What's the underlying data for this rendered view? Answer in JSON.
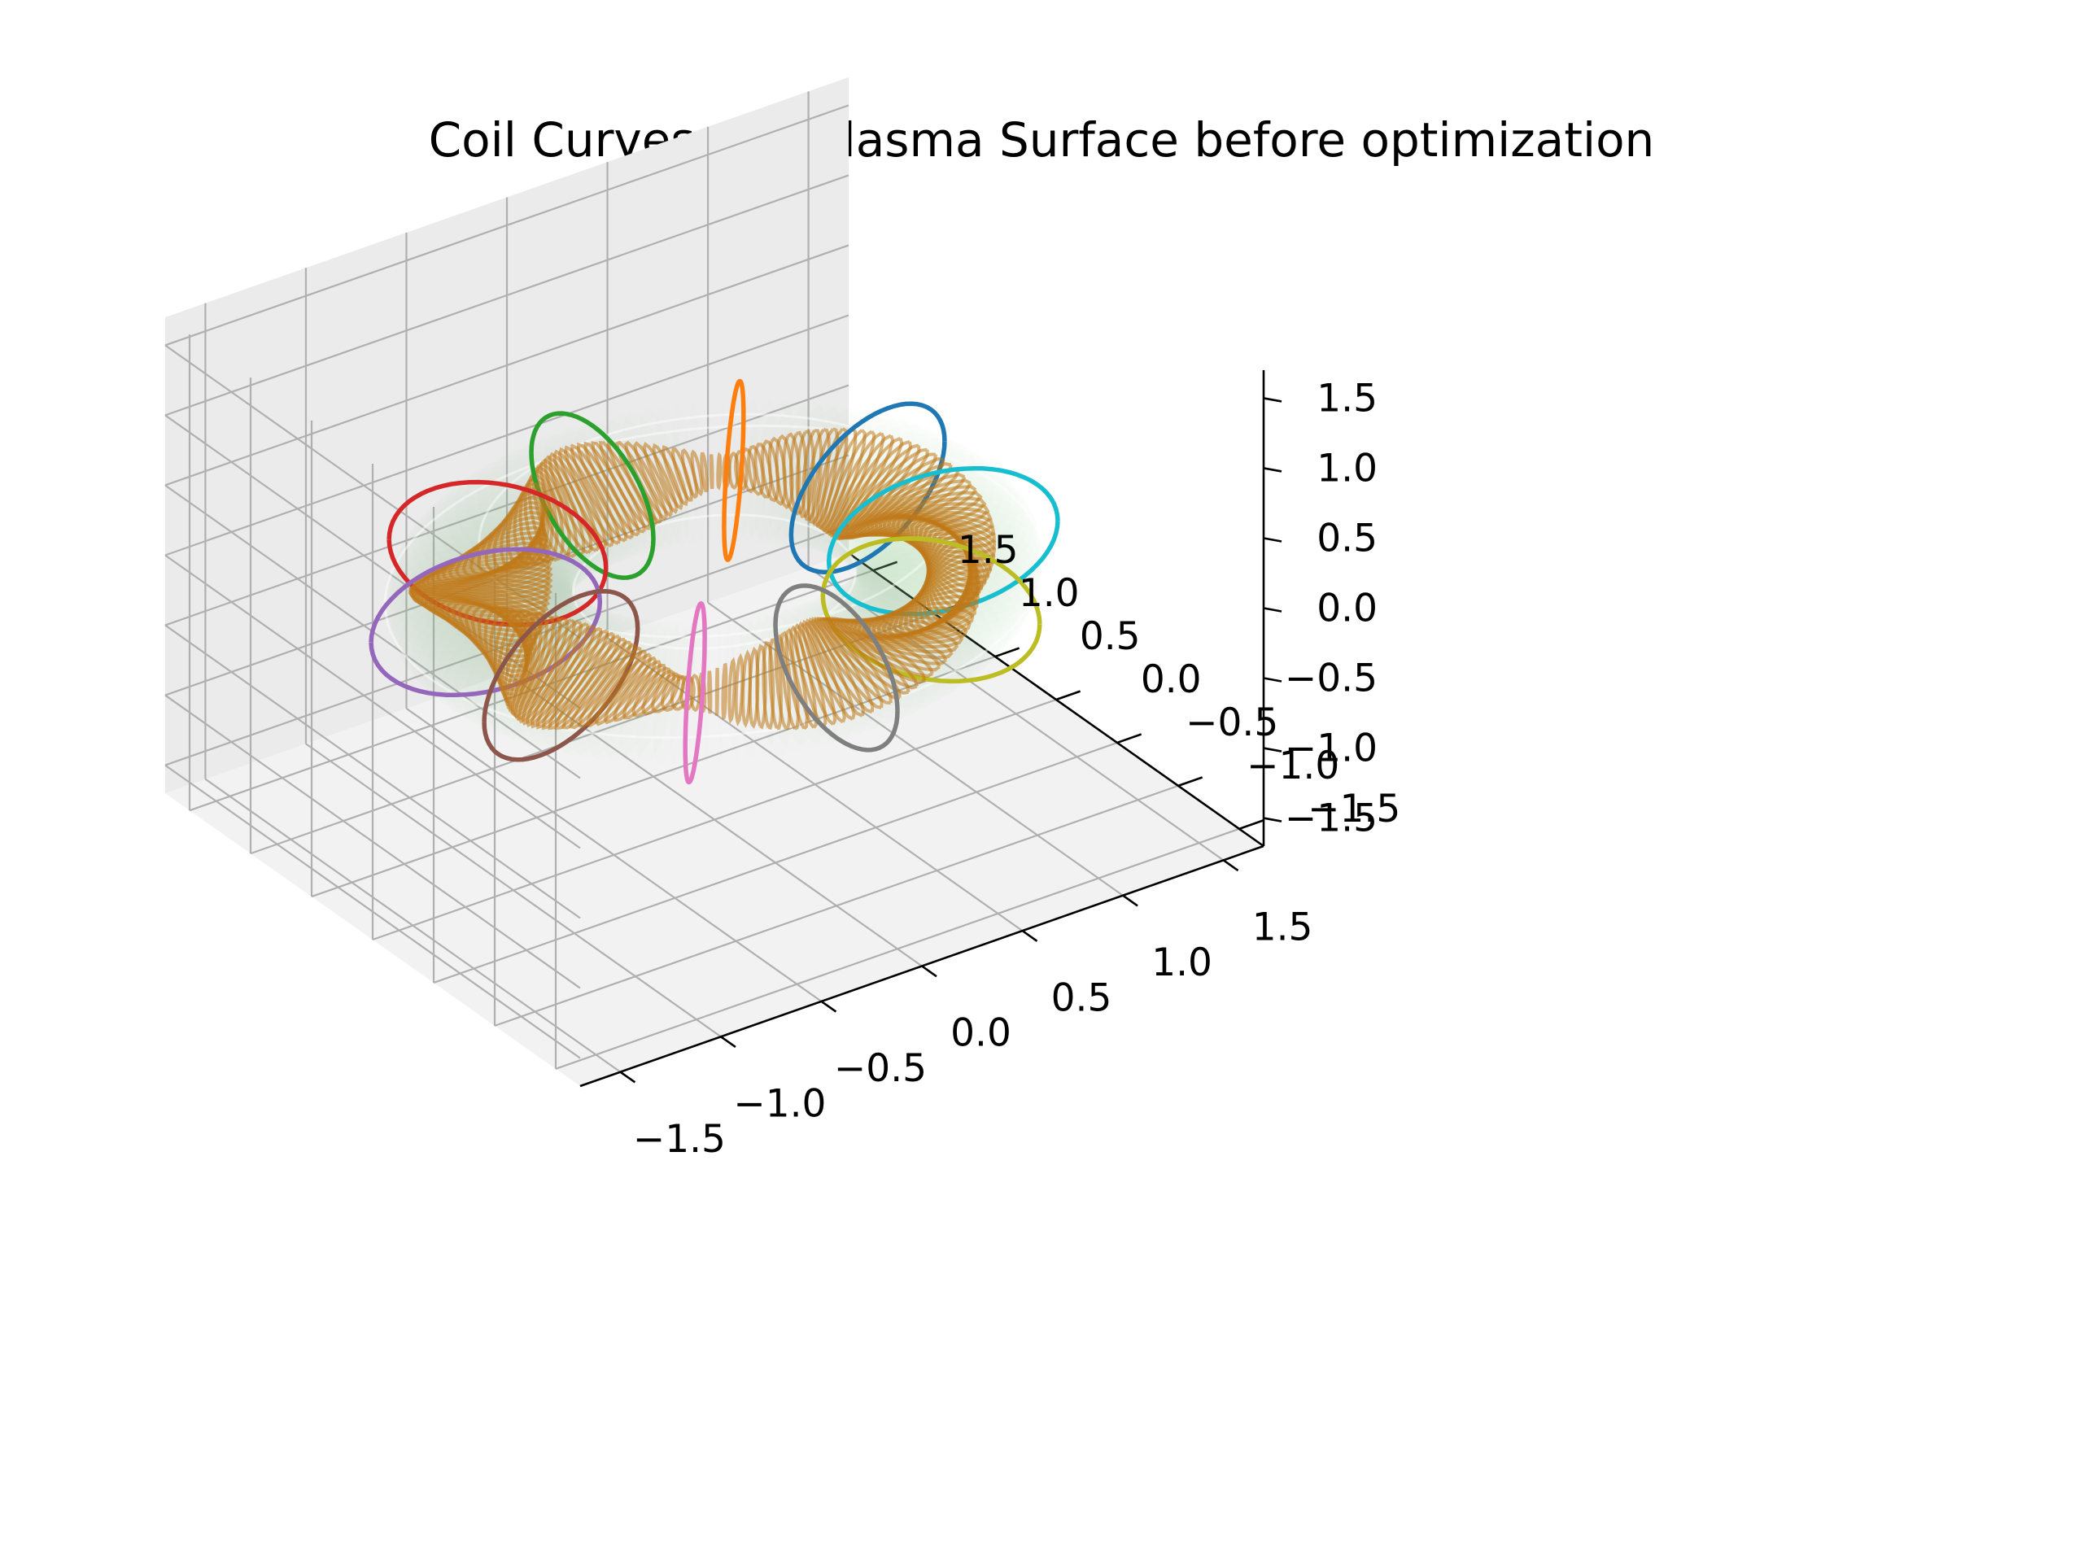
{
  "chart_data": {
    "type": "3d_line",
    "title": "Coil Curves and Plasma Surface before optimization",
    "xlabel": "",
    "ylabel": "",
    "zlabel": "",
    "xlim": [
      -1.7,
      1.7
    ],
    "ylim": [
      -1.7,
      1.7
    ],
    "zlim": [
      -1.7,
      1.7
    ],
    "x_ticks": [
      "−1.5",
      "−1.0",
      "−0.5",
      "0.0",
      "0.5",
      "1.0",
      "1.5"
    ],
    "y_ticks": [
      "−1.5",
      "−1.0",
      "−0.5",
      "0.0",
      "0.5",
      "1.0",
      "1.5"
    ],
    "z_ticks": [
      "−1.5",
      "−1.0",
      "−0.5",
      "0.0",
      "0.5",
      "1.0",
      "1.5"
    ],
    "grid": true,
    "torus_surface": {
      "major_radius": 1.0,
      "minor_radius": 0.4,
      "color": "#9fcf9f",
      "opacity": 0.3
    },
    "plasma_surface": {
      "major_radius": 1.0,
      "color": "#c07818"
    },
    "coils": [
      {
        "phi_deg": 18,
        "color": "#1f77b4"
      },
      {
        "phi_deg": 54,
        "color": "#ff7f0e"
      },
      {
        "phi_deg": 90,
        "color": "#2ca02c"
      },
      {
        "phi_deg": 126,
        "color": "#d62728"
      },
      {
        "phi_deg": 162,
        "color": "#9467bd"
      },
      {
        "phi_deg": 198,
        "color": "#8c564b"
      },
      {
        "phi_deg": 234,
        "color": "#e377c2"
      },
      {
        "phi_deg": 270,
        "color": "#7f7f7f"
      },
      {
        "phi_deg": 306,
        "color": "#bcbd22"
      },
      {
        "phi_deg": 342,
        "color": "#17becf"
      }
    ]
  }
}
